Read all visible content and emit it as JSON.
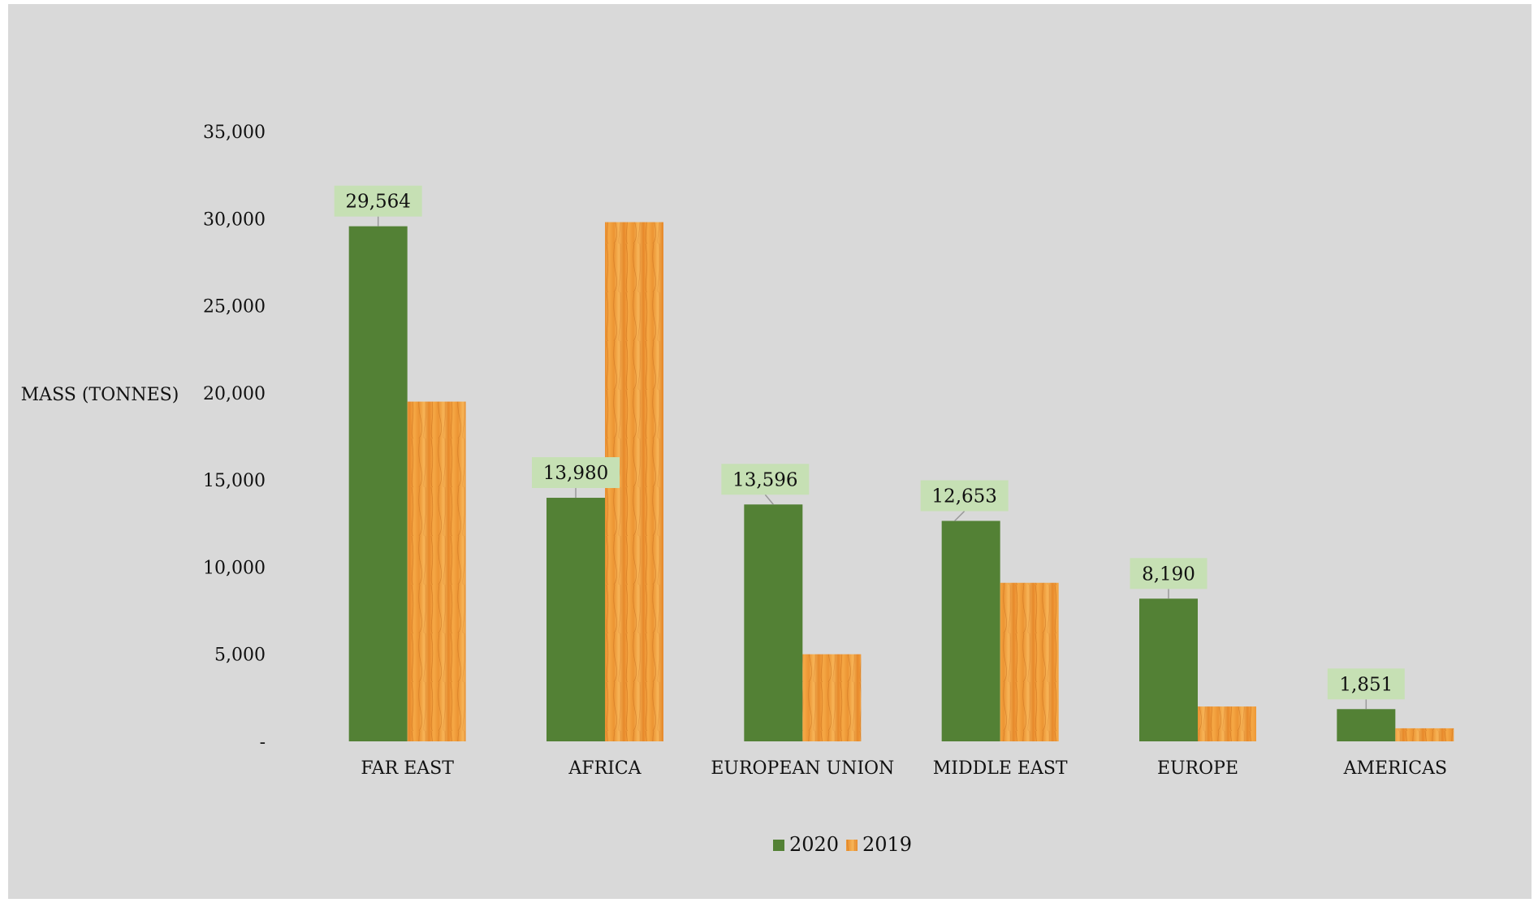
{
  "chart_data": {
    "type": "bar",
    "title": "",
    "xlabel": "",
    "ylabel": "MASS (TONNES)",
    "ylim": [
      0,
      35000
    ],
    "yticks": [
      0,
      5000,
      10000,
      15000,
      20000,
      25000,
      30000,
      35000
    ],
    "ytick_labels": [
      "-",
      "5,000",
      "10,000",
      "15,000",
      "20,000",
      "25,000",
      "30,000",
      "35,000"
    ],
    "categories": [
      "FAR EAST",
      "AFRICA",
      "EUROPEAN UNION",
      "MIDDLE EAST",
      "EUROPE",
      "AMERICAS"
    ],
    "series": [
      {
        "name": "2020",
        "values": [
          29564,
          13980,
          13596,
          12653,
          8190,
          1851
        ],
        "labels": [
          "29,564",
          "13,980",
          "13,596",
          "12,653",
          "8,190",
          "1,851"
        ],
        "color": "#538135"
      },
      {
        "name": "2019",
        "values": [
          19500,
          29800,
          5000,
          9100,
          2000,
          750
        ],
        "color": "#f0a040"
      }
    ],
    "grid": false,
    "legend_position": "bottom",
    "background": "#d9d9d9",
    "data_label_bg": "#c6e0b4"
  }
}
